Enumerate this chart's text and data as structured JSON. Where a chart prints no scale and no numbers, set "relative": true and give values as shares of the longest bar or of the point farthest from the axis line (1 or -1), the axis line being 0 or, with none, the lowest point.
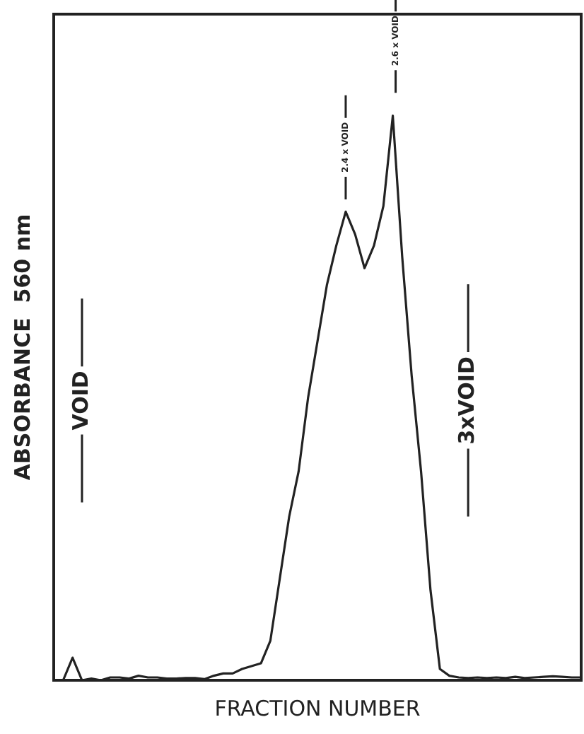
{
  "chart_data": {
    "type": "line",
    "relative": true,
    "xlabel": "FRACTION NUMBER",
    "ylabel": "ABSORBANCE  560 nm",
    "categories": [
      null,
      null,
      null,
      null,
      null,
      null,
      null,
      null,
      null,
      null,
      null,
      null,
      null,
      null,
      null,
      null,
      null,
      null,
      null,
      null,
      null,
      null,
      null,
      null,
      null,
      null,
      null,
      null,
      null,
      null,
      null,
      null,
      null,
      null,
      null,
      null,
      null,
      null,
      null,
      null,
      null,
      null,
      null,
      null,
      null,
      null,
      null,
      null,
      null,
      null,
      null,
      null,
      null,
      null,
      null,
      null,
      null
    ],
    "series": [
      {
        "color": "#222222",
        "values": [
          0,
          0,
          0.04,
          0,
          0.003,
          0,
          0.005,
          0.005,
          0.003,
          0.008,
          0.005,
          0.005,
          0.003,
          0.003,
          0.004,
          0.004,
          0.002,
          0.008,
          0.012,
          0.012,
          0.02,
          0.025,
          0.03,
          0.07,
          0.18,
          0.29,
          0.37,
          0.5,
          0.6,
          0.7,
          0.77,
          0.83,
          0.79,
          0.73,
          0.77,
          0.84,
          1,
          0.75,
          0.54,
          0.37,
          0.16,
          0.02,
          0.008,
          0.005,
          0.004,
          0.005,
          0.004,
          0.005,
          0.004,
          0.006,
          0.004,
          0.005,
          0.006,
          0.007,
          0.006,
          0.005,
          0.005
        ]
      }
    ],
    "annotations": [
      "VOID",
      "3xVOID",
      "2.4 x VOID",
      "2.6 x VOID"
    ],
    "marker": "none",
    "line_style": "solid",
    "grid": false,
    "legend": false
  }
}
